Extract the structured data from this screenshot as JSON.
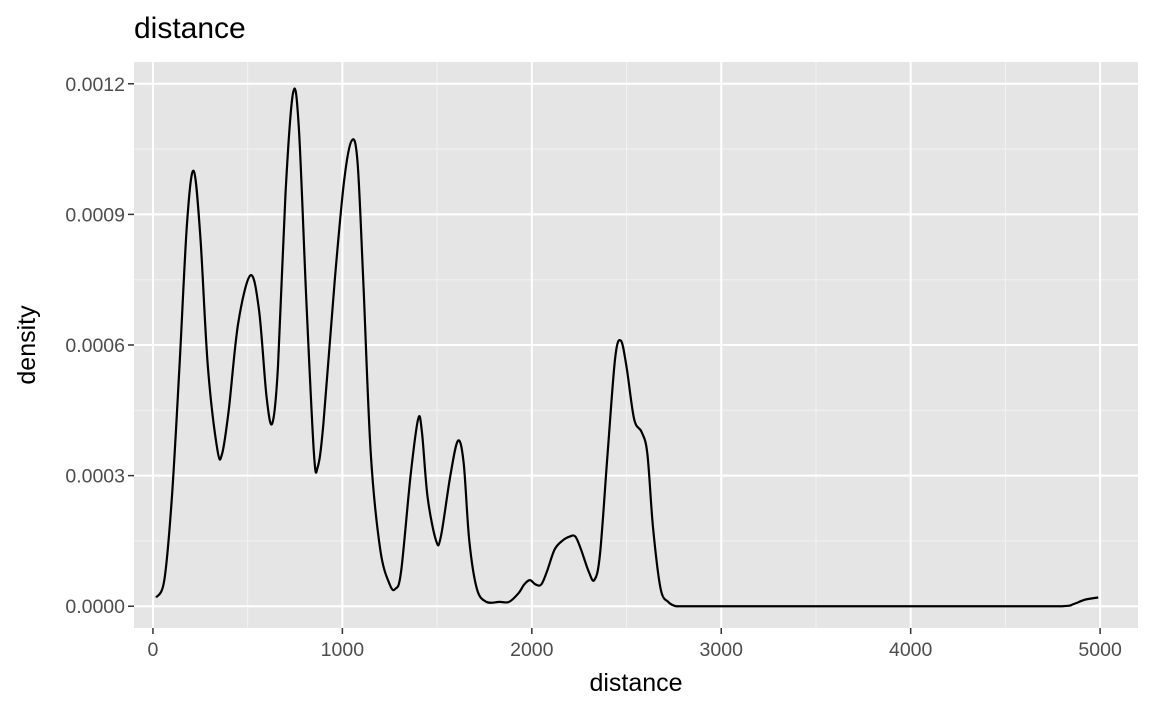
{
  "chart_data": {
    "type": "line",
    "title": "distance",
    "xlabel": "distance",
    "ylabel": "density",
    "xlim": [
      -100,
      5200
    ],
    "ylim": [
      -5e-05,
      0.00125
    ],
    "x_ticks": [
      0,
      1000,
      2000,
      3000,
      4000,
      5000
    ],
    "x_tick_labels": [
      "0",
      "1000",
      "2000",
      "3000",
      "4000",
      "5000"
    ],
    "y_ticks": [
      0.0,
      0.0003,
      0.0006,
      0.0009,
      0.0012
    ],
    "y_tick_labels": [
      "0.0000",
      "0.0003",
      "0.0006",
      "0.0009",
      "0.0012"
    ],
    "grid": true,
    "series": [
      {
        "line_color": "#000000",
        "x": [
          17,
          60,
          100,
          140,
          180,
          215,
          250,
          290,
          340,
          365,
          400,
          450,
          515,
          560,
          600,
          630,
          660,
          700,
          740,
          770,
          810,
          850,
          870,
          900,
          960,
          1010,
          1050,
          1080,
          1110,
          1150,
          1200,
          1250,
          1280,
          1310,
          1360,
          1400,
          1420,
          1450,
          1495,
          1520,
          1570,
          1610,
          1640,
          1670,
          1710,
          1760,
          1830,
          1880,
          1930,
          1960,
          1990,
          2020,
          2050,
          2080,
          2120,
          2160,
          2200,
          2230,
          2260,
          2300,
          2330,
          2360,
          2400,
          2440,
          2470,
          2500,
          2540,
          2580,
          2610,
          2640,
          2680,
          2720,
          2760,
          2800,
          3000,
          3500,
          4000,
          4500,
          4800,
          4860,
          4920,
          4990
        ],
        "y": [
          2e-05,
          6e-05,
          0.00025,
          0.00055,
          0.00088,
          0.001,
          0.00085,
          0.00055,
          0.00036,
          0.00035,
          0.00045,
          0.00065,
          0.00076,
          0.00068,
          0.00048,
          0.00042,
          0.00055,
          0.00095,
          0.00118,
          0.0011,
          0.0007,
          0.00035,
          0.00032,
          0.00042,
          0.00075,
          0.00098,
          0.00107,
          0.00102,
          0.00075,
          0.00035,
          0.00013,
          5e-05,
          4e-05,
          8e-05,
          0.0003,
          0.00043,
          0.0004,
          0.00025,
          0.00015,
          0.00016,
          0.0003,
          0.00038,
          0.00033,
          0.00015,
          4e-05,
          1e-05,
          1e-05,
          1e-05,
          3e-05,
          5e-05,
          6e-05,
          5e-05,
          5e-05,
          8e-05,
          0.00013,
          0.00015,
          0.00016,
          0.00016,
          0.00013,
          8e-05,
          6e-05,
          0.00012,
          0.00035,
          0.00057,
          0.00061,
          0.00055,
          0.00043,
          0.0004,
          0.00035,
          0.00018,
          4e-05,
          1e-05,
          0.0,
          0.0,
          0.0,
          0.0,
          0.0,
          0.0,
          0.0,
          5e-06,
          1.5e-05,
          2e-05
        ]
      }
    ]
  },
  "colors": {
    "panel_background": "#e5e5e5",
    "grid_major": "#ffffff",
    "grid_minor": "#f2f2f2",
    "tick_label": "#4d4d4d",
    "tick_mark": "#333333",
    "line": "#000000"
  }
}
